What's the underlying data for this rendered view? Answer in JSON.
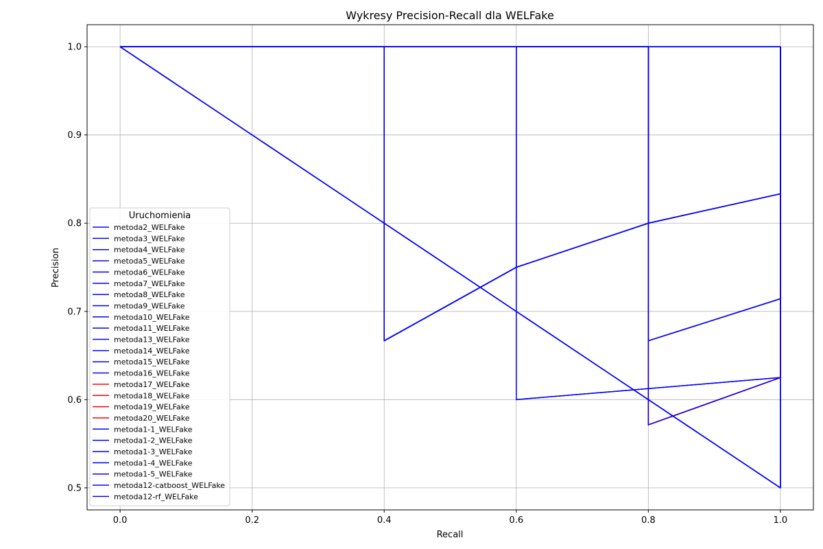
{
  "chart_data": {
    "type": "line",
    "title": "Wykresy Precision-Recall dla WELFake",
    "xlabel": "Recall",
    "ylabel": "Precision",
    "xlim": [
      -0.05,
      1.05
    ],
    "ylim": [
      0.475,
      1.025
    ],
    "xticks": [
      0.0,
      0.2,
      0.4,
      0.6,
      0.8,
      1.0
    ],
    "xtick_labels": [
      "0.0",
      "0.2",
      "0.4",
      "0.6",
      "0.8",
      "1.0"
    ],
    "yticks": [
      0.5,
      0.6,
      0.7,
      0.8,
      0.9,
      1.0
    ],
    "ytick_labels": [
      "0.5",
      "0.6",
      "0.7",
      "0.8",
      "0.9",
      "1.0"
    ],
    "grid": true,
    "legend_title": "Uruchomienia",
    "legend_position": "center-left",
    "colors": {
      "blue": "#0000ff",
      "red": "#ff0000"
    },
    "series": [
      {
        "name": "metoda2_WELFake",
        "color": "#0000ff",
        "x": [
          0,
          0.4,
          0.4,
          0.6,
          0.6,
          0.8,
          0.8,
          1.0,
          1.0
        ],
        "y": [
          1,
          1,
          0.6667,
          0.75,
          1,
          1,
          0.8,
          0.8333,
          1
        ]
      },
      {
        "name": "metoda3_WELFake",
        "color": "#0000ff",
        "x": [
          0,
          0.4,
          0.4,
          0.6,
          0.8,
          0.8,
          1.0,
          1.0
        ],
        "y": [
          1,
          1,
          0.6667,
          0.75,
          0.8,
          1,
          1,
          0.8333
        ]
      },
      {
        "name": "metoda4_WELFake",
        "color": "#0000ff",
        "x": [
          0,
          0.6,
          0.6,
          1.0,
          1.0
        ],
        "y": [
          1,
          1,
          0.6,
          0.625,
          1
        ]
      },
      {
        "name": "metoda5_WELFake",
        "color": "#0000ff",
        "x": [
          0,
          0.4,
          0.4,
          0.6,
          0.6,
          0.8,
          0.8,
          1.0,
          1.0
        ],
        "y": [
          1,
          1,
          0.6667,
          0.75,
          1,
          1,
          0.8,
          0.8333,
          1
        ]
      },
      {
        "name": "metoda6_WELFake",
        "color": "#0000ff",
        "x": [
          0,
          0.8,
          0.8,
          1.0,
          1.0
        ],
        "y": [
          1,
          1,
          0.6667,
          0.7143,
          1
        ]
      },
      {
        "name": "metoda7_WELFake",
        "color": "#0000ff",
        "x": [
          0,
          0.4,
          0.4,
          0.6,
          0.6,
          0.8,
          0.8,
          1.0,
          1.0
        ],
        "y": [
          1,
          1,
          0.6667,
          0.75,
          1,
          1,
          0.8,
          0.8333,
          1
        ]
      },
      {
        "name": "metoda8_WELFake",
        "color": "#0000ff",
        "x": [
          0,
          1.0,
          1.0
        ],
        "y": [
          1,
          0.5,
          1
        ]
      },
      {
        "name": "metoda9_WELFake",
        "color": "#0000ff",
        "x": [
          0,
          0.4,
          0.4,
          0.6,
          0.8,
          0.8,
          1.0,
          1.0
        ],
        "y": [
          1,
          1,
          0.6667,
          0.75,
          0.8,
          1,
          1,
          0.8333
        ]
      },
      {
        "name": "metoda10_WELFake",
        "color": "#0000ff",
        "x": [
          0,
          1.0,
          1.0
        ],
        "y": [
          1,
          0.5,
          1
        ]
      },
      {
        "name": "metoda11_WELFake",
        "color": "#0000ff",
        "x": [
          0,
          0.4,
          0.4,
          0.6,
          0.6,
          0.8,
          0.8,
          1.0,
          1.0
        ],
        "y": [
          1,
          1,
          0.6667,
          0.75,
          1,
          1,
          0.8,
          0.8333,
          1
        ]
      },
      {
        "name": "metoda13_WELFake",
        "color": "#0000ff",
        "x": [
          0,
          0.8,
          0.8,
          1.0,
          1.0
        ],
        "y": [
          1,
          1,
          0.6667,
          0.7143,
          1
        ]
      },
      {
        "name": "metoda14_WELFake",
        "color": "#0000ff",
        "x": [
          0,
          0.4,
          0.4,
          0.6,
          0.8,
          0.8,
          1.0,
          1.0
        ],
        "y": [
          1,
          1,
          0.6667,
          0.75,
          0.8,
          1,
          1,
          0.8333
        ]
      },
      {
        "name": "metoda15_WELFake",
        "color": "#0000ff",
        "x": [
          0,
          1.0,
          1.0
        ],
        "y": [
          1,
          0.5,
          1
        ]
      },
      {
        "name": "metoda16_WELFake",
        "color": "#0000ff",
        "x": [
          0,
          0.4,
          0.4,
          0.6,
          0.6,
          0.8,
          0.8,
          1.0,
          1.0
        ],
        "y": [
          1,
          1,
          0.6667,
          0.75,
          1,
          1,
          0.8,
          0.8333,
          1
        ]
      },
      {
        "name": "metoda17_WELFake",
        "color": "#ff0000",
        "x": [
          0,
          0.8,
          0.8,
          1.0,
          1.0
        ],
        "y": [
          1,
          1,
          0.5714,
          0.625,
          1
        ]
      },
      {
        "name": "metoda18_WELFake",
        "color": "#ff0000",
        "x": [
          0,
          0.8,
          0.8,
          0.8,
          1.0,
          1.0
        ],
        "y": [
          1,
          1,
          0.6667,
          0.5714,
          0.625,
          1
        ]
      },
      {
        "name": "metoda19_WELFake",
        "color": "#ff0000",
        "x": [
          0,
          0.8,
          0.8,
          1.0,
          1.0
        ],
        "y": [
          1,
          1,
          0.5714,
          0.625,
          1
        ]
      },
      {
        "name": "metoda20_WELFake",
        "color": "#ff0000",
        "x": [
          0,
          0.8,
          0.8,
          1.0,
          1.0
        ],
        "y": [
          1,
          1,
          0.5714,
          0.625,
          1
        ]
      },
      {
        "name": "metoda1-1_WELFake",
        "color": "#0000ff",
        "x": [
          0,
          0.4,
          0.4,
          0.6,
          0.6,
          0.8,
          0.8,
          1.0,
          1.0
        ],
        "y": [
          1,
          1,
          0.6667,
          0.75,
          1,
          1,
          0.8,
          0.8333,
          1
        ]
      },
      {
        "name": "metoda1-2_WELFake",
        "color": "#0000ff",
        "x": [
          0,
          0.8,
          0.8,
          1.0,
          1.0
        ],
        "y": [
          1,
          1,
          0.5714,
          0.625,
          1
        ]
      },
      {
        "name": "metoda1-3_WELFake",
        "color": "#0000ff",
        "x": [
          0,
          1.0,
          1.0
        ],
        "y": [
          1,
          0.5,
          1
        ]
      },
      {
        "name": "metoda1-4_WELFake",
        "color": "#0000ff",
        "x": [
          0,
          0.8,
          0.8,
          1.0,
          1.0
        ],
        "y": [
          1,
          1,
          0.6667,
          0.7143,
          1
        ]
      },
      {
        "name": "metoda1-5_WELFake",
        "color": "#0000ff",
        "x": [
          0,
          0.4,
          0.4,
          0.6,
          0.8,
          0.8,
          1.0,
          1.0
        ],
        "y": [
          1,
          1,
          0.6667,
          0.75,
          0.8,
          1,
          1,
          0.8333
        ]
      },
      {
        "name": "metoda12-catboost_WELFake",
        "color": "#0000ff",
        "x": [
          0,
          0.4,
          0.4,
          0.6,
          0.6,
          0.8,
          0.8,
          1.0,
          1.0
        ],
        "y": [
          1,
          1,
          0.6667,
          0.75,
          1,
          1,
          0.8,
          0.8333,
          1
        ]
      },
      {
        "name": "metoda12-rf_WELFake",
        "color": "#0000ff",
        "x": [
          0,
          0.6,
          0.6,
          1.0,
          1.0
        ],
        "y": [
          1,
          1,
          0.6,
          0.625,
          1
        ]
      }
    ]
  }
}
